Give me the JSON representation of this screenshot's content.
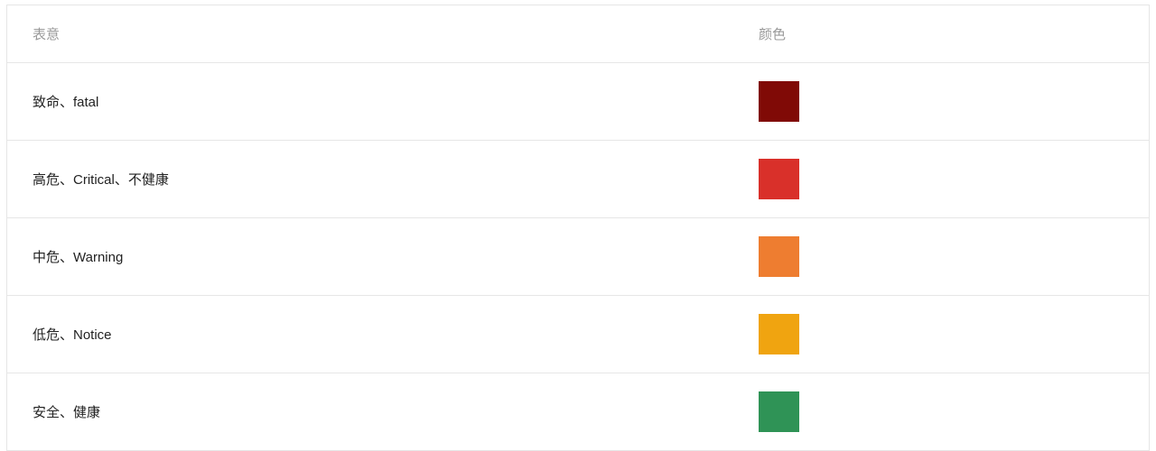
{
  "table": {
    "header": {
      "meaning": "表意",
      "color": "颜色"
    },
    "rows": [
      {
        "meaning": "致命、fatal",
        "color": "#800a06"
      },
      {
        "meaning": "高危、Critical、不健康",
        "color": "#d9302a"
      },
      {
        "meaning": "中危、Warning",
        "color": "#ee7d30"
      },
      {
        "meaning": "低危、Notice",
        "color": "#f0a410"
      },
      {
        "meaning": "安全、健康",
        "color": "#2f9356"
      }
    ]
  }
}
